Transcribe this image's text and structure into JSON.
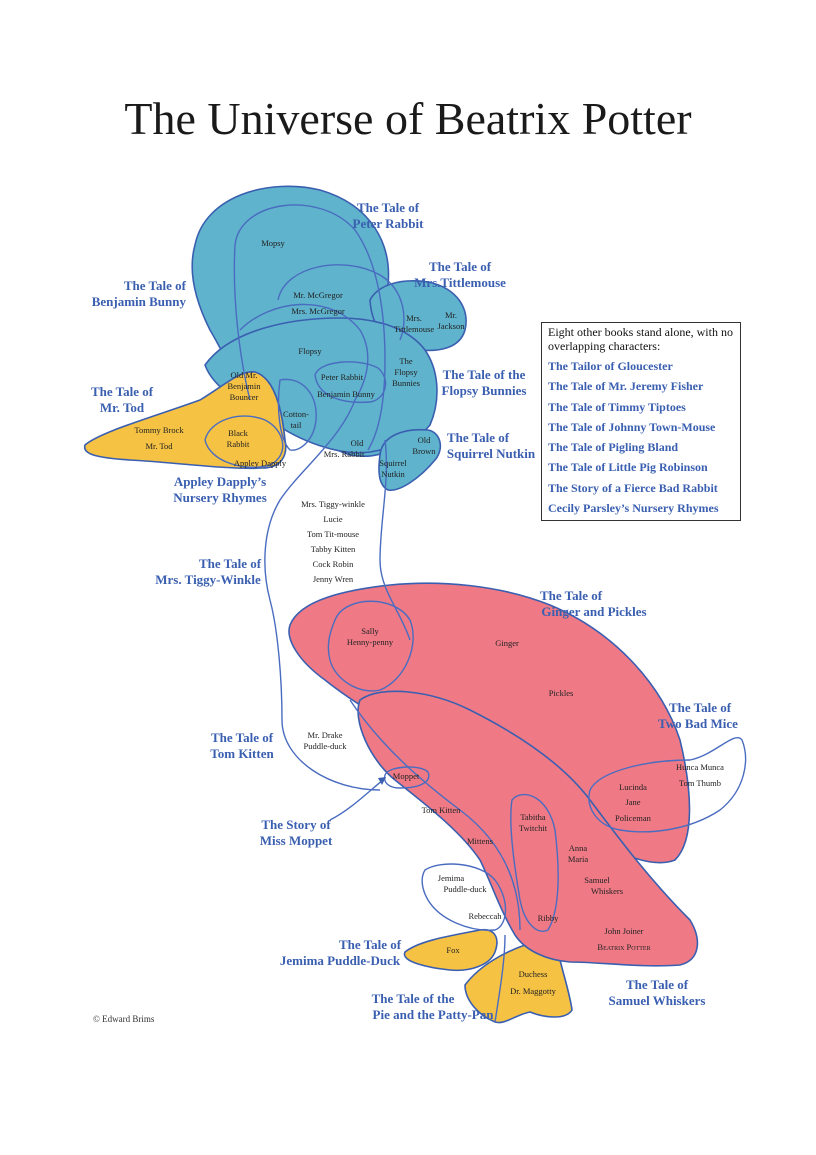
{
  "title": "The Universe of Beatrix Potter",
  "copyright": "© Edward Brims",
  "standalone": {
    "intro": "Eight other books stand alone, with no overlapping characters:",
    "books": [
      "The Tailor of Gloucester",
      "The Tale of Mr. Jeremy Fisher",
      "The Tale of Timmy Tiptoes",
      "The Tale of Johnny Town-Mouse",
      "The Tale of Pigling Bland",
      "The Tale of Little Pig Robinson",
      "The Story of a Fierce Bad Rabbit",
      "Cecily Parsley’s Nursery Rhymes"
    ]
  },
  "books": {
    "peter_rabbit": [
      "The Tale of",
      "Peter Rabbit"
    ],
    "mrs_tittlemouse": [
      "The Tale of",
      "Mrs.Tittlemouse"
    ],
    "benjamin_bunny": [
      "The Tale of",
      "Benjamin Bunny"
    ],
    "flopsy_bunnies": [
      "The Tale of the",
      "Flopsy Bunnies"
    ],
    "mr_tod": [
      "The Tale of",
      "Mr. Tod"
    ],
    "squirrel_nutkin": [
      "The Tale of",
      "Squirrel Nutkin"
    ],
    "appley_dapply": [
      "Appley Dapply’s",
      "Nursery Rhymes"
    ],
    "mrs_tiggy_winkle": [
      "The Tale of",
      "Mrs. Tiggy-Winkle"
    ],
    "ginger_pickles": [
      "The Tale of",
      "Ginger and Pickles"
    ],
    "two_bad_mice": [
      "The Tale of",
      "Two Bad Mice"
    ],
    "tom_kitten": [
      "The Tale of",
      "Tom Kitten"
    ],
    "miss_moppet": [
      "The Story of",
      "Miss Moppet"
    ],
    "jemima": [
      "The Tale of",
      "Jemima Puddle-Duck"
    ],
    "pie_patty_pan": [
      "The Tale of the",
      "Pie and the Patty-Pan"
    ],
    "samuel_whiskers": [
      "The Tale of",
      "Samuel Whiskers"
    ]
  },
  "characters": {
    "mopsy": "Mopsy",
    "mr_mcgregor": "Mr. McGregor",
    "mrs_mcgregor": "Mrs. McGregor",
    "mrs_tittlemouse": [
      "Mrs.",
      "Tittlemouse"
    ],
    "mr_jackson": [
      "Mr.",
      "Jackson"
    ],
    "flopsy": "Flopsy",
    "peter_rabbit": "Peter Rabbit",
    "benjamin_bunny": "Benjamin Bunny",
    "flopsy_bunnies": [
      "The",
      "Flopsy",
      "Bunnies"
    ],
    "old_mr_benjamin_bouncer": [
      "Old Mr.",
      "Benjamin",
      "Bouncer"
    ],
    "cottontail": [
      "Cotton-",
      "tail"
    ],
    "tommy_brock": "Tommy Brock",
    "mr_tod": "Mr. Tod",
    "black_rabbit": [
      "Black",
      "Rabbit"
    ],
    "appley_dapply": "Appley Dapply",
    "old_mrs_rabbit": [
      "Old",
      "Mrs. Rabbit"
    ],
    "old_brown": [
      "Old",
      "Brown"
    ],
    "squirrel_nutkin": [
      "Squirrel",
      "Nutkin"
    ],
    "tiggy_list": [
      "Mrs. Tiggy-winkle",
      "Lucie",
      "Tom Tit-mouse",
      "Tabby Kitten",
      "Cock Robin",
      "Jenny Wren"
    ],
    "sally_henny_penny": [
      "Sally",
      "Henny-penny"
    ],
    "ginger": "Ginger",
    "pickles": "Pickles",
    "hunca_munca": "Hunca Munca",
    "tom_thumb": "Tom Thumb",
    "lucinda": "Lucinda",
    "jane": "Jane",
    "policeman": "Policeman",
    "mr_drake": [
      "Mr. Drake",
      "Puddle-duck"
    ],
    "moppet": "Moppet",
    "tom_kitten": "Tom Kitten",
    "tabitha_twitchit": [
      "Tabitha",
      "Twitchit"
    ],
    "mittens": "Mittens",
    "anna_maria": [
      "Anna",
      "Maria"
    ],
    "samuel_whiskers": [
      "Samuel",
      "Whiskers"
    ],
    "jemima": [
      "Jemima",
      "Puddle-duck"
    ],
    "rebeccah": "Rebeccah",
    "ribby": "Ribby",
    "john_joiner": "John Joiner",
    "beatrix_potter": "Beatrix Potter",
    "fox": "Fox",
    "duchess": "Duchess",
    "dr_maggotty": "Dr. Maggotty"
  },
  "colors": {
    "blue_fill": "#5fb3cc",
    "yellow_fill": "#f6c244",
    "red_fill": "#ef7a86",
    "outline": "#3a5fb0",
    "label": "#3a5fb0"
  }
}
